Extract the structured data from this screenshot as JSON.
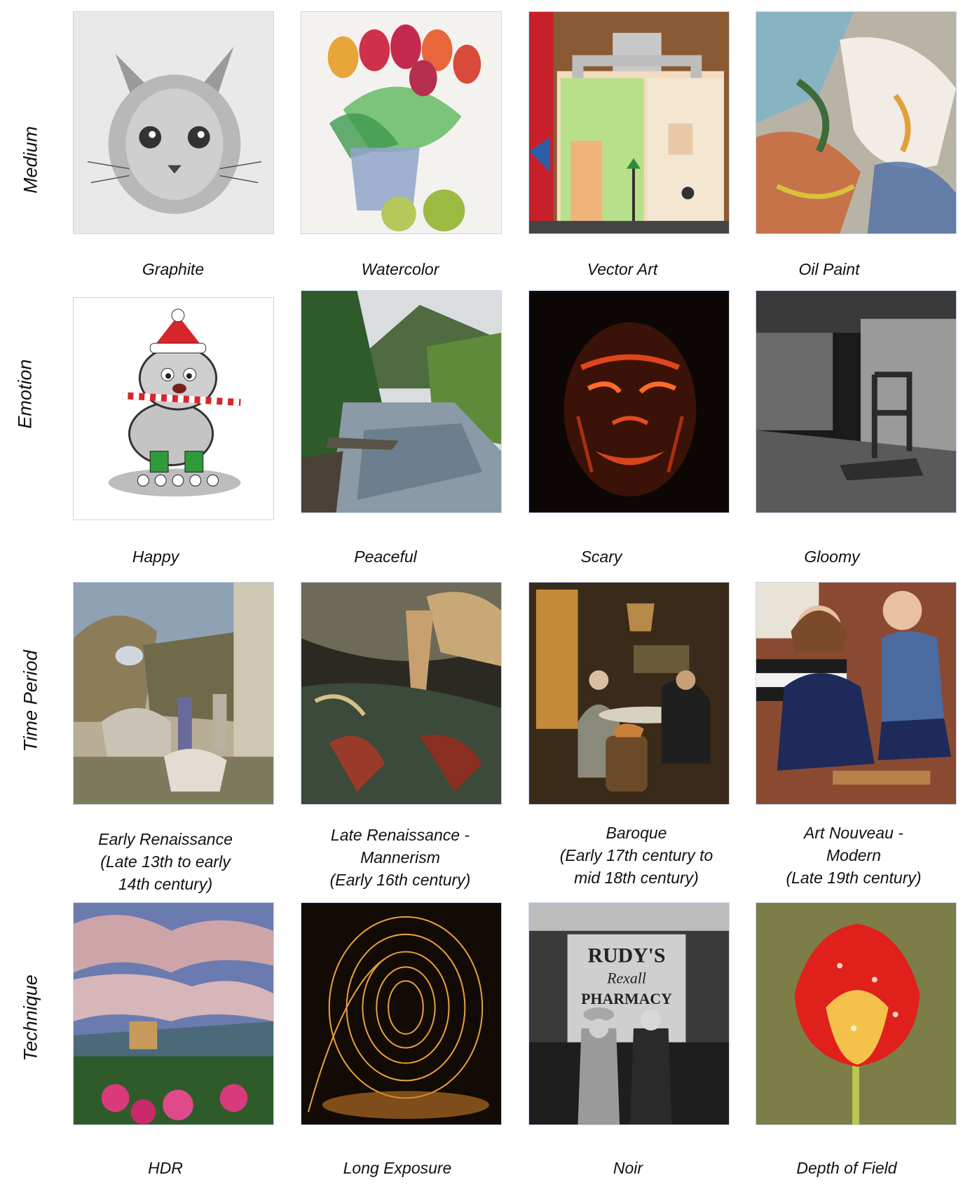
{
  "rows": [
    {
      "label": "Medium",
      "captions": [
        "Graphite",
        "Watercolor",
        "Vector Art",
        "Oil Paint"
      ]
    },
    {
      "label": "Emotion",
      "captions": [
        "Happy",
        "Peaceful",
        "Scary",
        "Gloomy"
      ]
    },
    {
      "label": "Time Period",
      "captions": [
        "Early Renaissance\n(Late 13th to early\n14th century)",
        "Late Renaissance -\nMannerism\n(Early 16th century)",
        "Baroque\n(Early 17th century to\nmid 18th century)",
        "Art Nouveau -\nModern\n(Late 19th century)"
      ]
    },
    {
      "label": "Technique",
      "captions": [
        "HDR",
        "Long Exposure",
        "Noir",
        "Depth of Field"
      ]
    }
  ],
  "images": {
    "graphite": "pencil sketch of a kitten",
    "watercolor": "watercolor tulips in a pot with apples",
    "vector_art": "vector illustration of house interior",
    "oil_paint": "abstract oil painting",
    "happy": "cartoon dog with santa hat and candy cane on roller skates",
    "peaceful": "river valley with green trees",
    "scary": "dark glowing face",
    "gloomy": "black and white abandoned room with chair",
    "early_renaissance": "fresco with horses and figures",
    "late_renaissance": "mannerist painting with dramatic figures",
    "baroque": "tavern interior scene",
    "art_nouveau": "two girls at a piano",
    "hdr": "dramatic cloudy sky over town with flowers",
    "long_exposure": "steel wool light painting spiral",
    "noir": "black and white street scene with pharmacy sign",
    "depth_of_field": "red and yellow tulip with water drops"
  },
  "sign_text": {
    "line1": "RUDY'S",
    "line2": "Rexall",
    "line3": "PHARMACY"
  }
}
